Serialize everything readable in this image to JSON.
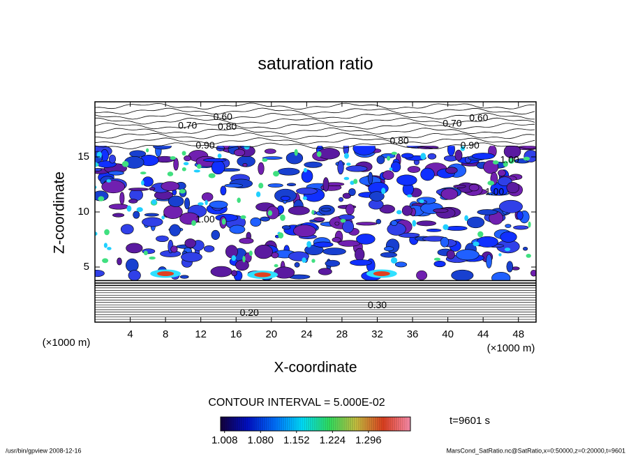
{
  "chart_data": {
    "type": "contour",
    "title": "saturation ratio",
    "x_label": "X-coordinate",
    "y_label": "Z-coordinate",
    "x_unit": "(×1000 m)",
    "y_unit": "(×1000 m)",
    "xlim": [
      0,
      50
    ],
    "ylim": [
      0,
      20
    ],
    "xticks": [
      4,
      8,
      12,
      16,
      20,
      24,
      28,
      32,
      36,
      40,
      44,
      48
    ],
    "yticks": [
      5,
      10,
      15
    ],
    "contour_interval": "CONTOUR INTERVAL = 5.000E-02",
    "time_label": "t=9601 s",
    "footer_left": "/usr/bin/gpview  2008-12-16",
    "footer_right": "MarsCond_SatRatio.nc@SatRatio,x=0:50000,z=0:20000,t=9601",
    "colorbar": {
      "lim": [
        1.0,
        1.38
      ],
      "ticks": [
        1.008,
        {
          "value": 1.08,
          "label": "1.080"
        },
        1.152,
        1.224,
        1.296
      ],
      "colors": [
        "#14003c",
        "#0010c8",
        "#0070ff",
        "#00e0ff",
        "#30e060",
        "#c8c040",
        "#e04020",
        "#ff90b0"
      ]
    },
    "contour_labels": [
      {
        "x": 14.5,
        "z": 18.6,
        "value": 0.6,
        "label": "0.60"
      },
      {
        "x": 10.5,
        "z": 17.8,
        "value": 0.7,
        "label": "0.70"
      },
      {
        "x": 15.0,
        "z": 17.7,
        "value": 0.8,
        "label": "0.80"
      },
      {
        "x": 12.5,
        "z": 16.0,
        "value": 0.9,
        "label": "0.90"
      },
      {
        "x": 34.5,
        "z": 16.4,
        "value": 0.8,
        "label": "0.80"
      },
      {
        "x": 43.5,
        "z": 18.5,
        "value": 0.6,
        "label": "0.60"
      },
      {
        "x": 40.5,
        "z": 18.0,
        "value": 0.7,
        "label": "0.70"
      },
      {
        "x": 42.5,
        "z": 16.0,
        "value": 0.9,
        "label": "0.90"
      },
      {
        "x": 47.0,
        "z": 14.7,
        "value": 1.0,
        "label": "1.00"
      },
      {
        "x": 45.3,
        "z": 11.8,
        "value": 1.0,
        "label": "1.00"
      },
      {
        "x": 12.5,
        "z": 9.3,
        "value": 1.0,
        "label": "1.00"
      },
      {
        "x": 17.5,
        "z": 0.8,
        "value": 0.2,
        "label": "0.20"
      },
      {
        "x": 32.0,
        "z": 1.5,
        "value": 0.3,
        "label": "0.30"
      }
    ]
  }
}
